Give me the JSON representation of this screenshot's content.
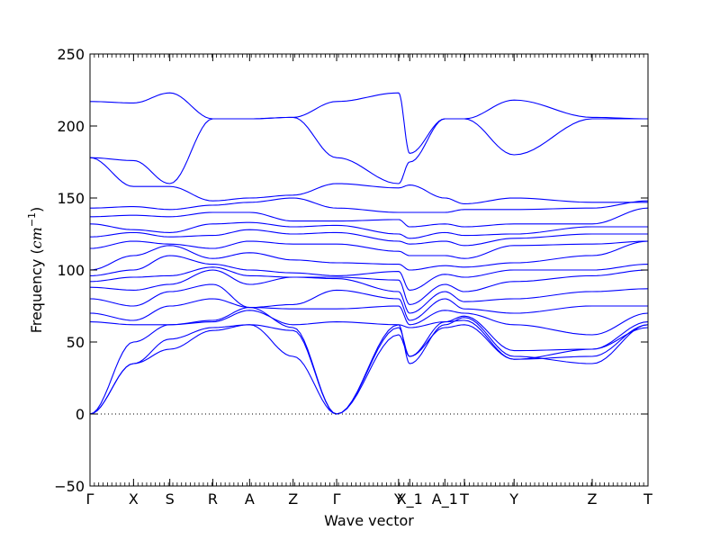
{
  "chart_data": {
    "type": "line",
    "xlabel": "Wave vector",
    "ylabel": "Frequency",
    "ylabel_unit_html": "cm",
    "ylabel_unit_sup": "−1",
    "ylim": [
      -50,
      250
    ],
    "yticks": [
      "250",
      "200",
      "150",
      "100",
      "50",
      "0",
      "−50"
    ],
    "ytick_values": [
      250,
      200,
      150,
      100,
      50,
      0,
      -50
    ],
    "high_symmetry_labels": [
      "Γ",
      "X",
      "S",
      "R",
      "A",
      "Z",
      "Γ",
      "Y",
      "X_1",
      "A_1",
      "T",
      "Y",
      "Z",
      "T"
    ],
    "high_symmetry_positions": [
      0,
      0.078,
      0.143,
      0.22,
      0.286,
      0.364,
      0.442,
      0.553,
      0.573,
      0.636,
      0.671,
      0.76,
      0.9,
      1.0
    ],
    "zero_line": true,
    "series_color": "#0000ff",
    "series": [
      {
        "values": [
          0,
          35,
          45,
          58,
          62,
          58,
          0,
          55,
          40,
          60,
          62,
          38,
          45,
          60
        ]
      },
      {
        "values": [
          0,
          35,
          52,
          60,
          62,
          40,
          0,
          60,
          40,
          64,
          65,
          38,
          40,
          62
        ]
      },
      {
        "values": [
          0,
          50,
          62,
          65,
          74,
          60,
          0,
          62,
          35,
          62,
          67,
          40,
          35,
          62
        ]
      },
      {
        "values": [
          64,
          62,
          62,
          64,
          72,
          62,
          64,
          62,
          60,
          64,
          68,
          44,
          45,
          64
        ]
      },
      {
        "values": [
          70,
          65,
          75,
          80,
          74,
          73,
          73,
          75,
          62,
          72,
          70,
          62,
          55,
          70
        ]
      },
      {
        "values": [
          80,
          75,
          85,
          90,
          74,
          76,
          86,
          80,
          65,
          80,
          73,
          70,
          75,
          75
        ]
      },
      {
        "values": [
          88,
          86,
          90,
          100,
          90,
          95,
          94,
          85,
          70,
          85,
          78,
          80,
          85,
          87
        ]
      },
      {
        "values": [
          92,
          95,
          96,
          102,
          96,
          95,
          95,
          93,
          76,
          90,
          85,
          92,
          96,
          100
        ]
      },
      {
        "values": [
          96,
          100,
          110,
          104,
          100,
          98,
          96,
          99,
          86,
          97,
          95,
          100,
          100,
          104
        ]
      },
      {
        "values": [
          100,
          110,
          117,
          108,
          112,
          107,
          105,
          104,
          100,
          103,
          102,
          105,
          110,
          120
        ]
      },
      {
        "values": [
          115,
          120,
          118,
          115,
          120,
          118,
          118,
          113,
          110,
          110,
          108,
          117,
          118,
          120
        ]
      },
      {
        "values": [
          123,
          126,
          123,
          124,
          128,
          125,
          126,
          120,
          118,
          120,
          117,
          122,
          125,
          125
        ]
      },
      {
        "values": [
          132,
          128,
          126,
          132,
          133,
          130,
          131,
          125,
          122,
          126,
          124,
          125,
          130,
          130
        ]
      },
      {
        "values": [
          137,
          138,
          137,
          140,
          140,
          134,
          134,
          135,
          130,
          132,
          130,
          132,
          132,
          143
        ]
      },
      {
        "values": [
          143,
          144,
          142,
          145,
          147,
          150,
          143,
          140,
          140,
          140,
          142,
          142,
          143,
          148
        ]
      },
      {
        "values": [
          178,
          158,
          158,
          148,
          150,
          152,
          160,
          157,
          159,
          150,
          146,
          150,
          147,
          147
        ]
      },
      {
        "values": [
          178,
          176,
          160,
          205,
          205,
          206,
          178,
          160,
          175,
          205,
          205,
          180,
          205,
          205
        ]
      },
      {
        "values": [
          217,
          216,
          223,
          205,
          205,
          206,
          217,
          223,
          181,
          205,
          205,
          218,
          206,
          205
        ]
      }
    ]
  }
}
